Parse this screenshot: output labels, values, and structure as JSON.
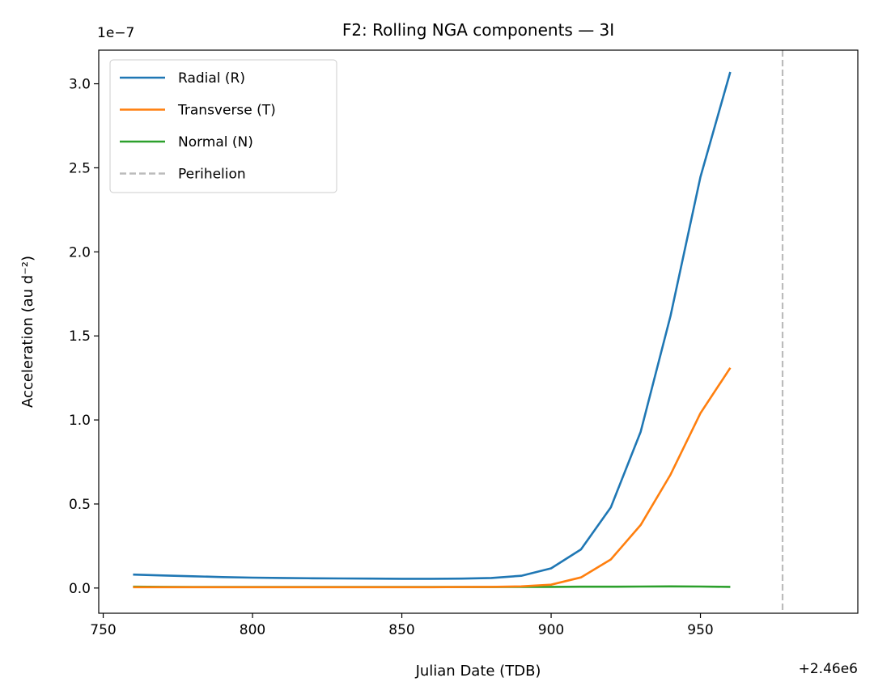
{
  "chart_data": {
    "type": "line",
    "title": "F2: Rolling NGA components — 3I",
    "xlabel": "Julian Date (TDB)",
    "ylabel": "Acceleration (au d⁻²)",
    "y_scale_label": "1e−7",
    "x_offset_label": "+2.46e6",
    "xlim": [
      748.5,
      1002.7
    ],
    "ylim": [
      -0.15,
      3.2
    ],
    "y_multiplier": 1e-07,
    "x_offset": 2460000,
    "xticks": [
      750,
      800,
      850,
      900,
      950
    ],
    "yticks": [
      0.0,
      0.5,
      1.0,
      1.5,
      2.0,
      2.5,
      3.0
    ],
    "xtick_labels": [
      "750",
      "800",
      "850",
      "900",
      "950"
    ],
    "ytick_labels": [
      "0.0",
      "0.5",
      "1.0",
      "1.5",
      "2.0",
      "2.5",
      "3.0"
    ],
    "grid": false,
    "legend_position": "upper-left",
    "x": [
      760,
      770,
      780,
      790,
      800,
      810,
      820,
      830,
      840,
      850,
      860,
      870,
      880,
      890,
      900,
      910,
      920,
      930,
      940,
      950,
      960
    ],
    "series": [
      {
        "name": "Radial (R)",
        "color": "#1f77b4",
        "values": [
          0.08,
          0.075,
          0.07,
          0.065,
          0.062,
          0.06,
          0.058,
          0.057,
          0.056,
          0.055,
          0.055,
          0.056,
          0.06,
          0.073,
          0.117,
          0.23,
          0.48,
          0.93,
          1.62,
          2.445,
          3.07
        ]
      },
      {
        "name": "Transverse (T)",
        "color": "#ff7f0e",
        "values": [
          0.005,
          0.005,
          0.005,
          0.005,
          0.005,
          0.005,
          0.005,
          0.005,
          0.005,
          0.005,
          0.005,
          0.006,
          0.007,
          0.01,
          0.02,
          0.063,
          0.17,
          0.375,
          0.675,
          1.04,
          1.31
        ]
      },
      {
        "name": "Normal (N)",
        "color": "#2ca02c",
        "values": [
          0.008,
          0.007,
          0.006,
          0.006,
          0.006,
          0.006,
          0.006,
          0.006,
          0.006,
          0.006,
          0.006,
          0.006,
          0.006,
          0.007,
          0.007,
          0.008,
          0.008,
          0.009,
          0.01,
          0.009,
          0.007
        ]
      }
    ],
    "vlines": [
      {
        "name": "Perihelion",
        "x": 977.5,
        "color": "#bbbbbb",
        "style": "dashed"
      }
    ]
  }
}
